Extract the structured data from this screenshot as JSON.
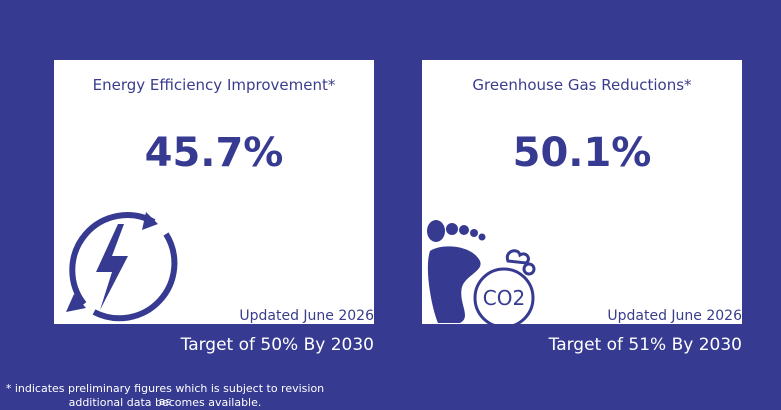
{
  "cards": [
    {
      "title": "Energy Efficiency Improvement*",
      "value": "45.7%",
      "updated": "Updated June 2026",
      "target": "Target of 50% By 2030"
    },
    {
      "title": "Greenhouse Gas Reductions*",
      "value": "50.1%",
      "updated": "Updated June 2026",
      "target": "Target of 51% By 2030",
      "icon_label": "CO2"
    }
  ],
  "footnote": [
    "* indicates preliminary figures which is subject to revision as",
    "additional data becomes available."
  ]
}
